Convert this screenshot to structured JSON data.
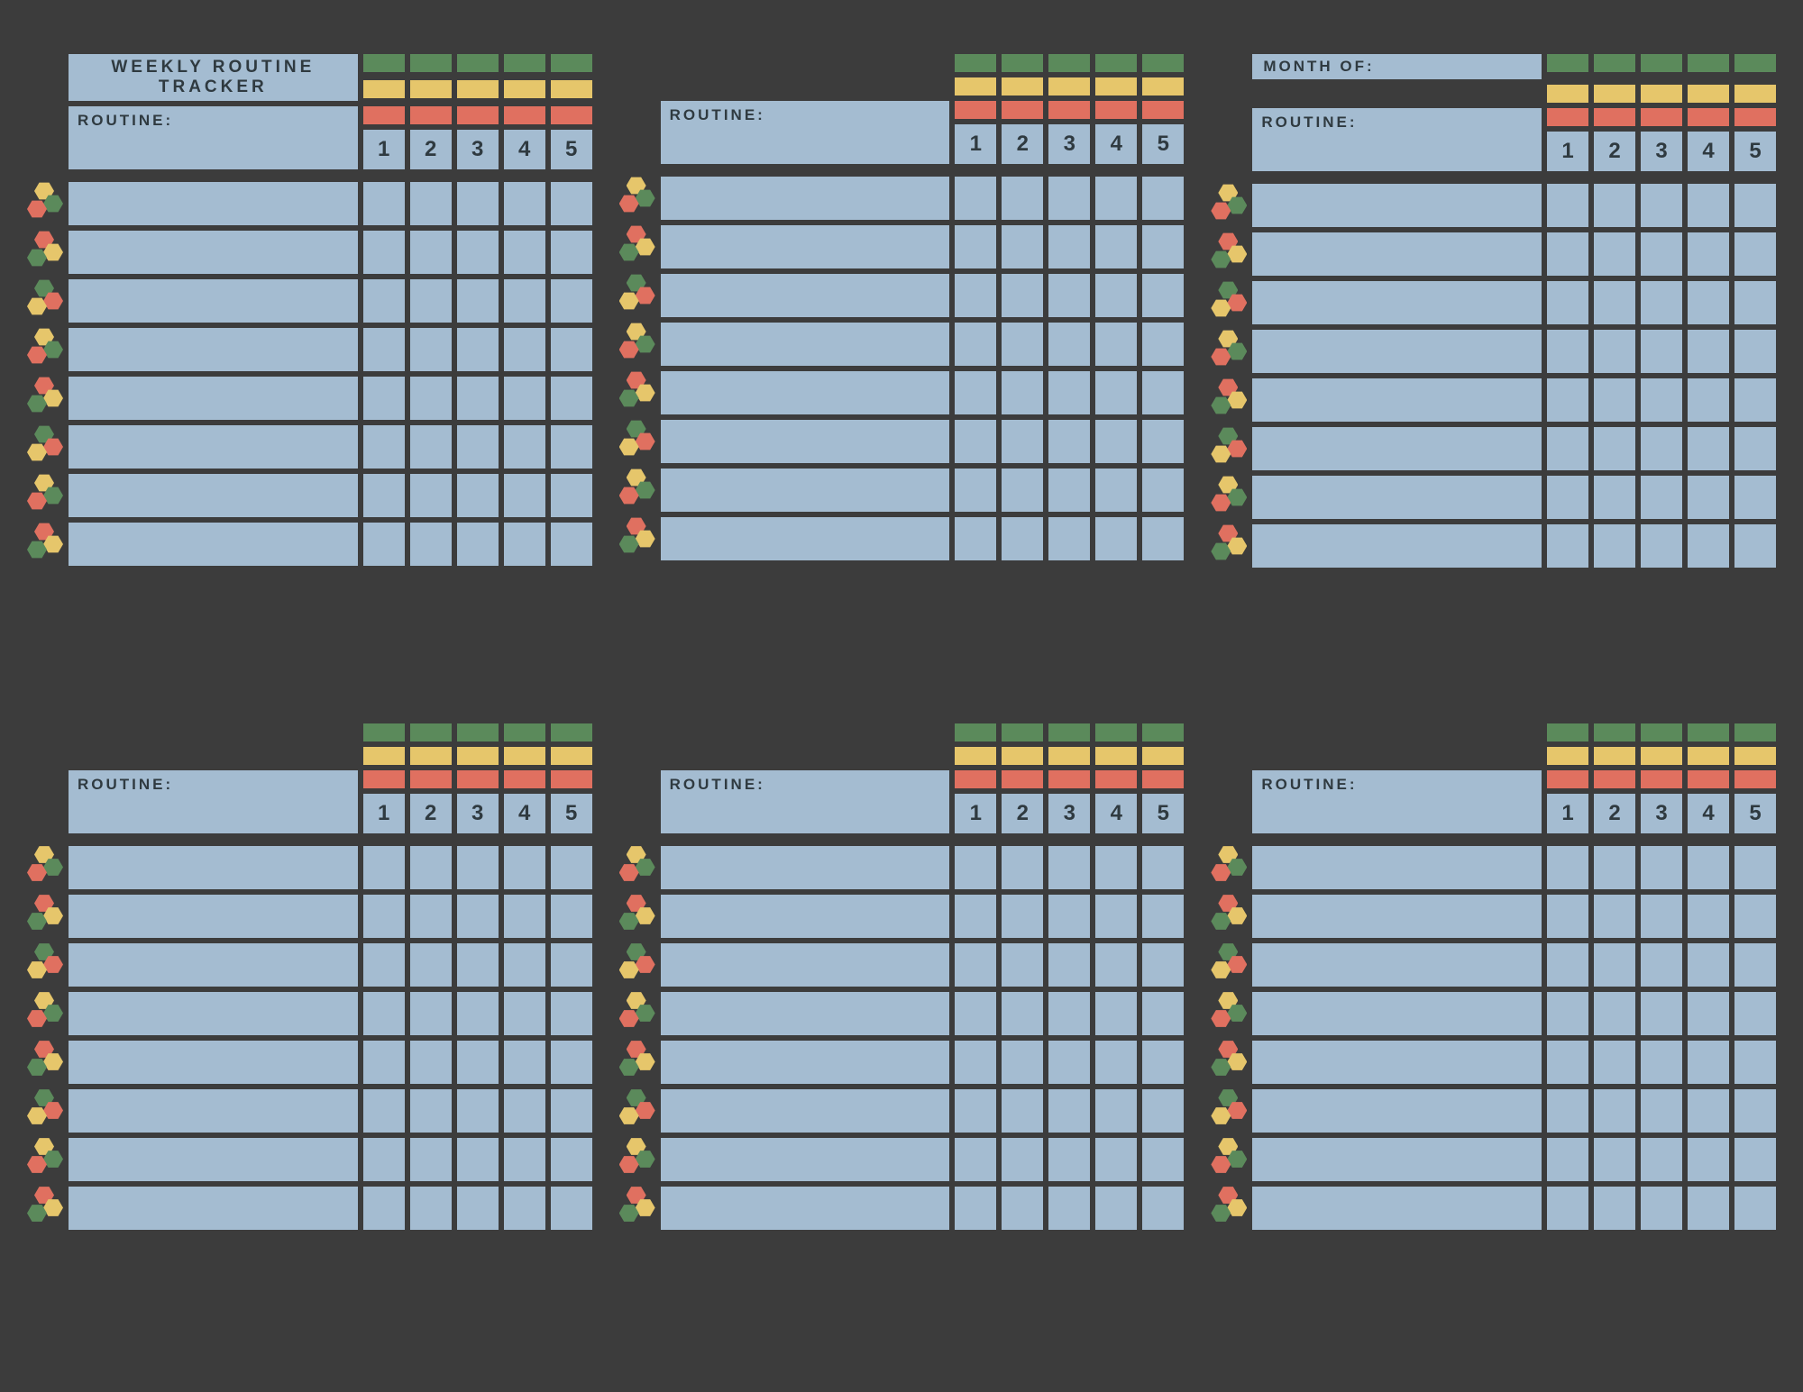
{
  "colors": {
    "background": "#3c3c3c",
    "cell": "#a4bcd1",
    "green": "#5b8a5b",
    "yellow": "#e6c66b",
    "red": "#e07060",
    "text": "#2f3a40"
  },
  "title_line1": "WEEKLY ROUTINE",
  "title_line2": "TRACKER",
  "routine_label": "ROUTINE:",
  "month_label": "MONTH OF:",
  "column_numbers": [
    "1",
    "2",
    "3",
    "4",
    "5"
  ],
  "rows_per_block": 8,
  "blocks": [
    {
      "id": "b1",
      "has_title": true,
      "title_kind": "main"
    },
    {
      "id": "b2",
      "has_title": false
    },
    {
      "id": "b3",
      "has_title": true,
      "title_kind": "month"
    },
    {
      "id": "b4",
      "has_title": false
    },
    {
      "id": "b5",
      "has_title": false
    },
    {
      "id": "b6",
      "has_title": false
    }
  ],
  "hex_patterns": [
    [
      "yellow",
      "green",
      "red"
    ],
    [
      "red",
      "yellow",
      "green"
    ],
    [
      "green",
      "red",
      "yellow"
    ]
  ]
}
